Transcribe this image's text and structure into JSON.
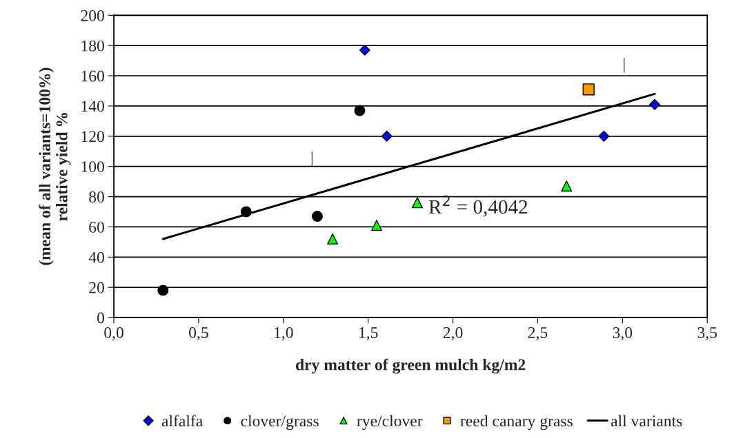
{
  "chart_data": {
    "type": "scatter",
    "xlabel": "dry matter of green mulch kg/m2",
    "ylabel": "(mean of all variants=100%)\nrelative yield %",
    "xlim": [
      0,
      3.5
    ],
    "xticks": [
      {
        "value": 0,
        "label": "0,0"
      },
      {
        "value": 0.5,
        "label": "0,5"
      },
      {
        "value": 1,
        "label": "1,0"
      },
      {
        "value": 1.5,
        "label": "1,5"
      },
      {
        "value": 2,
        "label": "2,0"
      },
      {
        "value": 2.5,
        "label": "2,5"
      },
      {
        "value": 3,
        "label": "3,0"
      },
      {
        "value": 3.5,
        "label": "3,5"
      }
    ],
    "ylim": [
      0,
      200
    ],
    "yticks": [
      0,
      20,
      40,
      60,
      80,
      100,
      120,
      140,
      160,
      180,
      200
    ],
    "grid": "y",
    "legend": "bottom",
    "series": [
      {
        "name": "alfalfa",
        "color": "#0000ff",
        "marker": "diamond",
        "x": [
          1.48,
          1.61,
          2.89,
          3.19
        ],
        "values": [
          177,
          120,
          120,
          141
        ]
      },
      {
        "name": "clover/grass",
        "color": "#000000",
        "marker": "circle",
        "x": [
          0.29,
          0.78,
          1.2,
          1.45
        ],
        "values": [
          18,
          70,
          67,
          137
        ]
      },
      {
        "name": "rye/clover",
        "color": "#00ff00",
        "marker": "triangle",
        "x": [
          1.29,
          1.55,
          1.79,
          2.67
        ],
        "values": [
          52,
          61,
          76,
          87
        ]
      },
      {
        "name": "reed canary grass",
        "color": "#ff9900",
        "marker": "square",
        "x": [
          2.8
        ],
        "values": [
          151
        ]
      },
      {
        "name": "all variants",
        "type": "line",
        "color": "#000000",
        "x": [
          0.29,
          3.19
        ],
        "values": [
          52,
          148
        ]
      }
    ],
    "annotations": [
      "R$^{2}$ = 0,4042",
      "|",
      "|"
    ]
  }
}
